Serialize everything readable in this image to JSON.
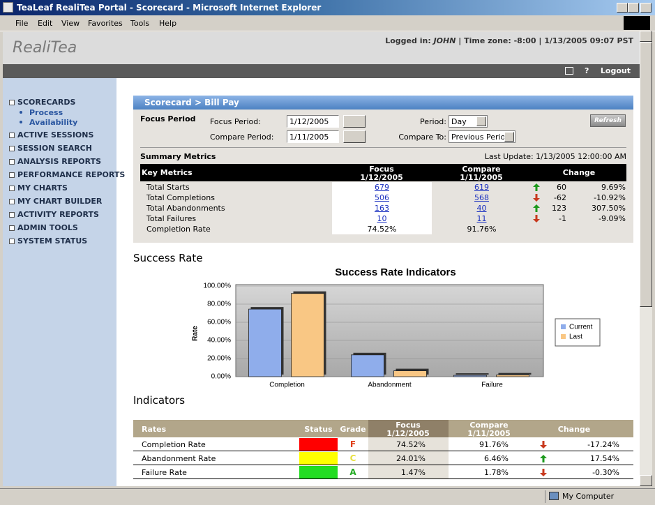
{
  "window": {
    "title": "TeaLeaf RealiTea Portal - Scorecard - Microsoft Internet Explorer",
    "menu": [
      "File",
      "Edit",
      "View",
      "Favorites",
      "Tools",
      "Help"
    ],
    "status": "My Computer"
  },
  "header": {
    "logo": "RealiTea",
    "login_label": "Logged in:",
    "user": "JOHN",
    "info": "| Time zone: -8:00 | 1/13/2005 09:07 PST",
    "help": "?",
    "logout": "Logout"
  },
  "nav": [
    {
      "label": "SCORECARDS",
      "children": [
        "Process",
        "Availability"
      ]
    },
    {
      "label": "ACTIVE SESSIONS"
    },
    {
      "label": "SESSION SEARCH"
    },
    {
      "label": "ANALYSIS REPORTS"
    },
    {
      "label": "PERFORMANCE REPORTS"
    },
    {
      "label": "MY CHARTS"
    },
    {
      "label": "MY CHART BUILDER"
    },
    {
      "label": "ACTIVITY REPORTS"
    },
    {
      "label": "ADMIN TOOLS"
    },
    {
      "label": "SYSTEM STATUS"
    }
  ],
  "scorecard": {
    "breadcrumb": "Scorecard > Bill Pay",
    "section": "Focus Period",
    "focus_label": "Focus Period:",
    "focus_value": "1/12/2005",
    "compare_label": "Compare Period:",
    "compare_value": "1/11/2005",
    "period_label": "Period:",
    "period_value": "Day",
    "compare_to_label": "Compare To:",
    "compare_to_value": "Previous Period",
    "refresh": "Refresh"
  },
  "summary": {
    "title": "Summary Metrics",
    "last_update": "Last Update: 1/13/2005 12:00:00 AM",
    "headers": {
      "metric": "Key Metrics",
      "focus": "Focus",
      "focus_date": "1/12/2005",
      "compare": "Compare",
      "compare_date": "1/11/2005",
      "change": "Change"
    },
    "rows": [
      {
        "metric": "Total Starts",
        "focus": "679",
        "compare": "619",
        "linked": true,
        "trend": "up",
        "delta": "60",
        "pct": "9.69%"
      },
      {
        "metric": "Total Completions",
        "focus": "506",
        "compare": "568",
        "linked": true,
        "trend": "down",
        "delta": "-62",
        "pct": "-10.92%"
      },
      {
        "metric": "Total Abandonments",
        "focus": "163",
        "compare": "40",
        "linked": true,
        "trend": "up",
        "delta": "123",
        "pct": "307.50%"
      },
      {
        "metric": "Total Failures",
        "focus": "10",
        "compare": "11",
        "linked": true,
        "trend": "down",
        "delta": "-1",
        "pct": "-9.09%"
      },
      {
        "metric": "Completion Rate",
        "focus": "74.52%",
        "compare": "91.76%",
        "linked": false
      }
    ]
  },
  "success_heading": "Success Rate",
  "chart_data": {
    "type": "bar",
    "title": "Success Rate Indicators",
    "y_label": "Rate",
    "categories": [
      "Completion",
      "Abandonment",
      "Failure"
    ],
    "series": [
      {
        "name": "Current",
        "color": "#8fadeb",
        "values": [
          74.52,
          24.01,
          1.47
        ]
      },
      {
        "name": "Last",
        "color": "#f9c784",
        "values": [
          91.76,
          6.46,
          1.78
        ]
      }
    ],
    "ylim": [
      0,
      100
    ],
    "yticks": [
      {
        "value": 0,
        "label": "0.00%"
      },
      {
        "value": 20,
        "label": "20.00%"
      },
      {
        "value": 40,
        "label": "40.00%"
      },
      {
        "value": 60,
        "label": "60.00%"
      },
      {
        "value": 80,
        "label": "80.00%"
      },
      {
        "value": 100,
        "label": "100.00%"
      }
    ],
    "grid": true,
    "legend": "right"
  },
  "indicators": {
    "title": "Indicators",
    "headers": {
      "rate": "Rates",
      "status": "Status",
      "grade": "Grade",
      "focus": "Focus",
      "focus_date": "1/12/2005",
      "compare": "Compare",
      "compare_date": "1/11/2005",
      "change": "Change"
    },
    "rows": [
      {
        "rate": "Completion Rate",
        "status": "#ff0000",
        "grade": "F",
        "grade_color": "#e0401a",
        "focus": "74.52%",
        "compare": "91.76%",
        "trend": "down",
        "change": "-17.24%"
      },
      {
        "rate": "Abandonment Rate",
        "status": "#ffff00",
        "grade": "C",
        "grade_color": "#e8e040",
        "focus": "24.01%",
        "compare": "6.46%",
        "trend": "up",
        "change": "17.54%"
      },
      {
        "rate": "Failure Rate",
        "status": "#22dd22",
        "grade": "A",
        "grade_color": "#22aa22",
        "focus": "1.47%",
        "compare": "1.78%",
        "trend": "down",
        "change": "-0.30%"
      }
    ]
  }
}
